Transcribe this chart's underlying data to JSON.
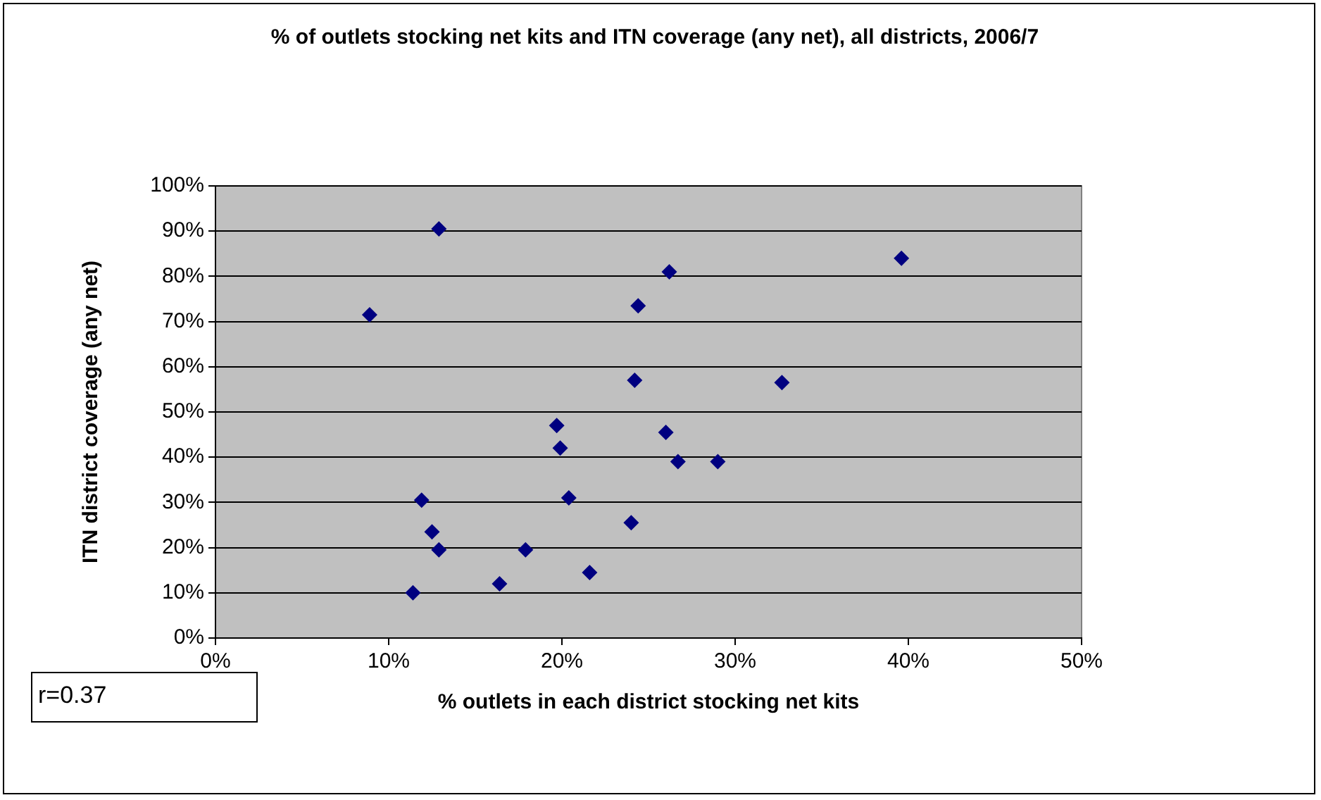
{
  "chart_data": {
    "type": "scatter",
    "title": "% of outlets stocking net kits and ITN coverage (any net), all districts, 2006/7",
    "xlabel": "% outlets in each district stocking net kits",
    "ylabel": "ITN district coverage (any net)",
    "annotations": [
      "r=0.37"
    ],
    "xlim": [
      0,
      50
    ],
    "xticks": [
      {
        "value": 0,
        "label": "0%"
      },
      {
        "value": 10,
        "label": "10%"
      },
      {
        "value": 20,
        "label": "20%"
      },
      {
        "value": 30,
        "label": "30%"
      },
      {
        "value": 40,
        "label": "40%"
      },
      {
        "value": 50,
        "label": "50%"
      }
    ],
    "ylim": [
      0,
      100
    ],
    "yticks": [
      {
        "value": 0,
        "label": "0%"
      },
      {
        "value": 10,
        "label": "10%"
      },
      {
        "value": 20,
        "label": "20%"
      },
      {
        "value": 30,
        "label": "30%"
      },
      {
        "value": 40,
        "label": "40%"
      },
      {
        "value": 50,
        "label": "50%"
      },
      {
        "value": 60,
        "label": "60%"
      },
      {
        "value": 70,
        "label": "70%"
      },
      {
        "value": 80,
        "label": "80%"
      },
      {
        "value": 90,
        "label": "90%"
      },
      {
        "value": 100,
        "label": "100%"
      }
    ],
    "grid": "y",
    "marker": "diamond",
    "legend": false,
    "series": [
      {
        "color": "#000080",
        "x": [
          8.9,
          12.9,
          11.9,
          12.5,
          12.9,
          11.4,
          16.4,
          17.9,
          19.7,
          19.9,
          20.4,
          21.6,
          24,
          24.2,
          24.4,
          26,
          26.2,
          26.7,
          29,
          32.7,
          39.6
        ],
        "values": [
          71.5,
          90.5,
          30.5,
          23.5,
          19.5,
          10,
          12,
          19.5,
          47,
          42,
          31,
          14.5,
          25.5,
          57,
          73.5,
          45.5,
          81,
          39,
          39,
          56.5,
          84
        ]
      }
    ]
  }
}
